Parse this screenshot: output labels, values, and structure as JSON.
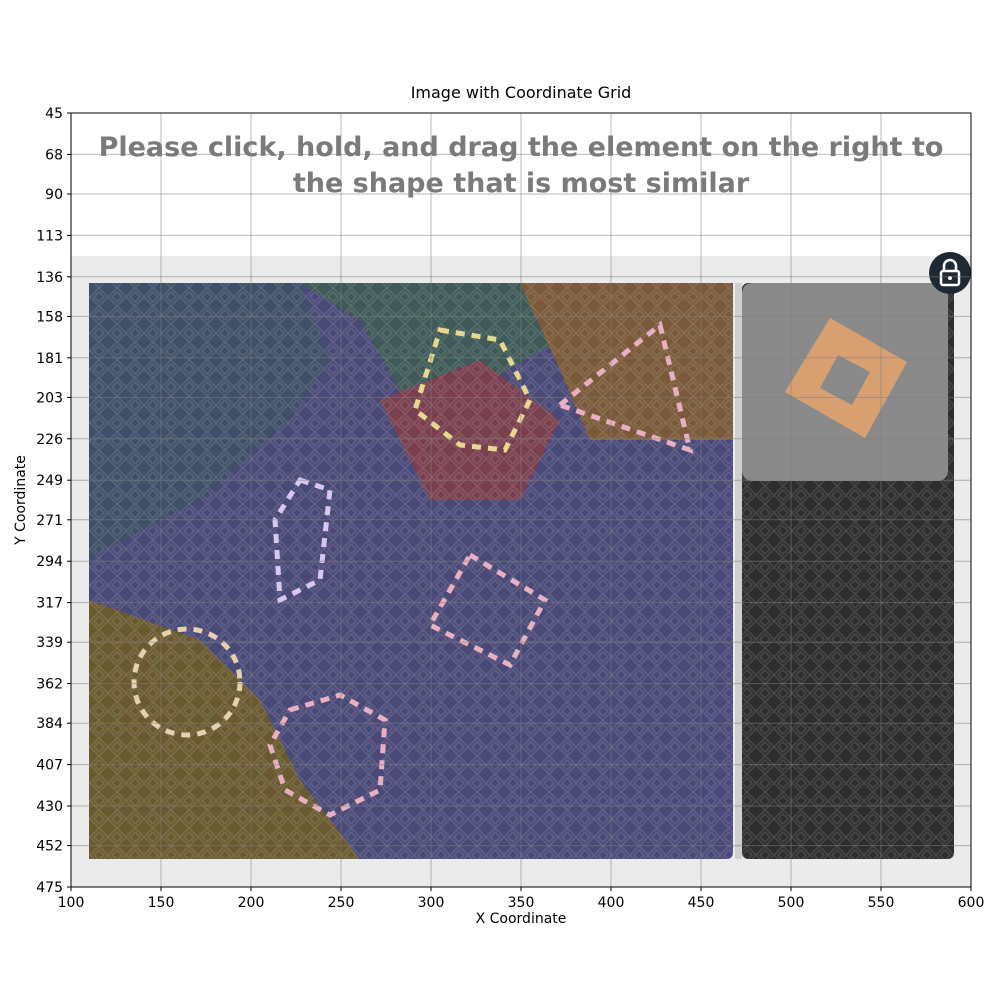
{
  "chart_data": {
    "type": "image",
    "title": "Image with Coordinate Grid",
    "xlabel": "X Coordinate",
    "ylabel": "Y Coordinate",
    "annotations": [
      "Please click, hold, and drag the element on the right to the shape that is most similar"
    ],
    "xlim": [
      100,
      600
    ],
    "ylim": [
      475,
      45
    ],
    "xticks": [
      100,
      150,
      200,
      250,
      300,
      350,
      400,
      450,
      500,
      550,
      600
    ],
    "yticks": [
      45,
      68,
      90,
      113,
      136,
      158,
      181,
      203,
      226,
      249,
      271,
      294,
      317,
      339,
      362,
      384,
      407,
      430,
      452,
      475
    ],
    "grid": true
  }
}
